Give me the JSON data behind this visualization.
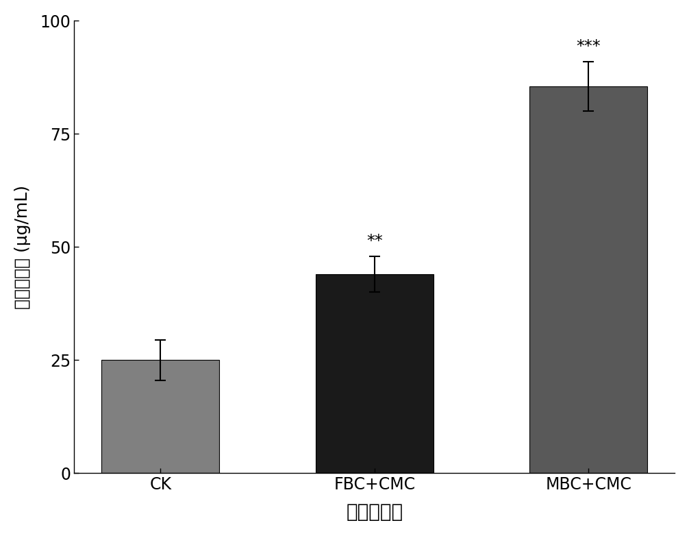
{
  "categories": [
    "CK",
    "FBC+CMC",
    "MBC+CMC"
  ],
  "values": [
    25.0,
    44.0,
    85.5
  ],
  "errors": [
    4.5,
    4.0,
    5.5
  ],
  "bar_colors": [
    "#808080",
    "#1a1a1a",
    "#595959"
  ],
  "significance": [
    "",
    "**",
    "***"
  ],
  "xlabel": "不同实验组",
  "ylabel_chinese": "速效钒含量",
  "ylabel_unit": "(μg/mL)",
  "ylim": [
    0,
    100
  ],
  "yticks": [
    0,
    25,
    50,
    75,
    100
  ],
  "xlabel_fontsize": 20,
  "ylabel_fontsize": 18,
  "tick_fontsize": 17,
  "sig_fontsize": 17,
  "bar_width": 0.55,
  "edge_color": "black",
  "edge_width": 0.8
}
